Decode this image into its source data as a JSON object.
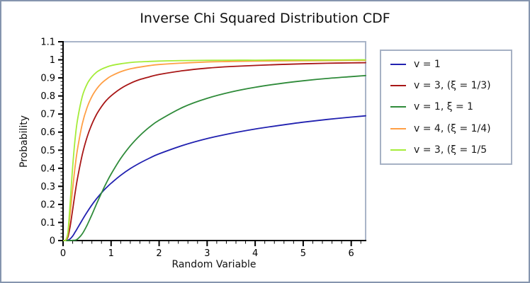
{
  "title": "Inverse Chi Squared Distribution CDF",
  "frame": {
    "border_color": "#8595ae",
    "box_color": "#a9b4c8",
    "axis_color": "#000000",
    "background": "#ffffff"
  },
  "chart_data": {
    "type": "line",
    "title": "Inverse Chi Squared Distribution CDF",
    "xlabel": "Random Variable",
    "ylabel": "Probability",
    "xlim": [
      0,
      6.3
    ],
    "ylim": [
      0,
      1.1
    ],
    "grid": false,
    "legend_position": "right-outside",
    "x_ticks": {
      "major": [
        0,
        1,
        2,
        3,
        4,
        5,
        6
      ],
      "labels": [
        "0",
        "1",
        "2",
        "3",
        "4",
        "5",
        "6"
      ],
      "minor_step": 0.2
    },
    "y_ticks": {
      "major": [
        0,
        0.1,
        0.2,
        0.3,
        0.4,
        0.5,
        0.6,
        0.7,
        0.8,
        0.9,
        1,
        1.1
      ],
      "labels": [
        "0",
        "0.1",
        "0.2",
        "0.3",
        "0.4",
        "0.5",
        "0.6",
        "0.7",
        "0.8",
        "0.9",
        "1",
        "1.1"
      ],
      "minor_step": 0.02
    },
    "x": [
      0,
      0.05,
      0.1,
      0.15,
      0.2,
      0.25,
      0.3,
      0.4,
      0.5,
      0.6,
      0.7,
      0.8,
      0.9,
      1,
      1.2,
      1.4,
      1.6,
      1.8,
      2,
      2.5,
      3,
      3.5,
      4,
      4.5,
      5,
      5.5,
      6,
      6.3
    ],
    "series": [
      {
        "name": "v = 1",
        "color": "#2121b0",
        "values": [
          0,
          0,
          0.002,
          0.01,
          0.025,
          0.046,
          0.068,
          0.114,
          0.157,
          0.197,
          0.232,
          0.264,
          0.292,
          0.317,
          0.361,
          0.398,
          0.429,
          0.456,
          0.48,
          0.527,
          0.564,
          0.593,
          0.617,
          0.637,
          0.655,
          0.67,
          0.683,
          0.69
        ]
      },
      {
        "name": "v = 3, (ξ = 1/3)",
        "color": "#a81616",
        "values": [
          0,
          0,
          0.019,
          0.083,
          0.172,
          0.261,
          0.343,
          0.475,
          0.572,
          0.644,
          0.699,
          0.741,
          0.775,
          0.801,
          0.841,
          0.87,
          0.891,
          0.906,
          0.919,
          0.94,
          0.954,
          0.963,
          0.969,
          0.974,
          0.978,
          0.981,
          0.983,
          0.984
        ]
      },
      {
        "name": "v = 1, ξ = 1",
        "color": "#2f8b3a",
        "values": [
          0,
          0,
          0,
          0,
          0.001,
          0.002,
          0.008,
          0.037,
          0.085,
          0.143,
          0.204,
          0.263,
          0.318,
          0.368,
          0.454,
          0.524,
          0.581,
          0.628,
          0.666,
          0.738,
          0.787,
          0.822,
          0.848,
          0.868,
          0.884,
          0.897,
          0.907,
          0.913
        ]
      },
      {
        "name": "v = 4, (ξ = 1/4)",
        "color": "#ff9f45",
        "values": [
          0,
          0.001,
          0.04,
          0.155,
          0.287,
          0.406,
          0.504,
          0.645,
          0.736,
          0.797,
          0.839,
          0.87,
          0.892,
          0.91,
          0.934,
          0.95,
          0.96,
          0.968,
          0.974,
          0.982,
          0.988,
          0.991,
          0.993,
          0.994,
          0.995,
          0.996,
          0.997,
          0.997
        ]
      },
      {
        "name": "v = 3, (ξ = 1/5",
        "color": "#a5ec39",
        "values": [
          0,
          0,
          0.043,
          0.218,
          0.41,
          0.559,
          0.666,
          0.797,
          0.866,
          0.906,
          0.932,
          0.948,
          0.959,
          0.968,
          0.978,
          0.985,
          0.989,
          0.991,
          0.993,
          0.996,
          0.997,
          0.998,
          0.998,
          0.999,
          0.999,
          0.999,
          1,
          1
        ]
      }
    ]
  }
}
